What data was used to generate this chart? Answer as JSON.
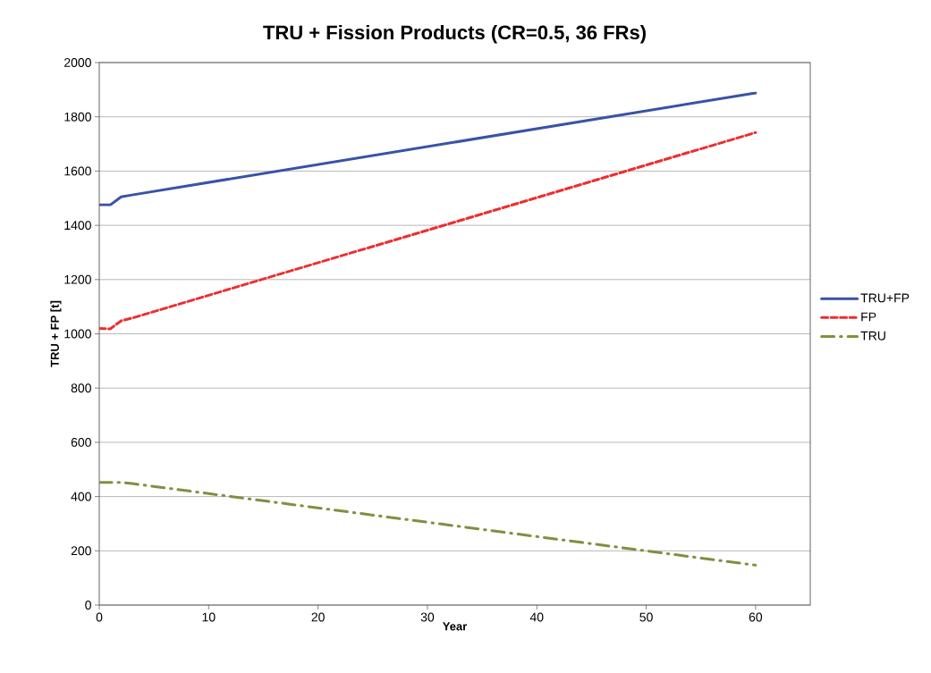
{
  "chart_data": {
    "type": "line",
    "title": "TRU + Fission Products (CR=0.5, 36 FRs)",
    "xlabel": "Year",
    "ylabel": "TRU + FP [t]",
    "x": [
      0,
      1,
      2,
      3,
      60
    ],
    "series": [
      {
        "name": "TRU+FP",
        "color": "#3953a4",
        "line_style": "solid",
        "values": [
          1475,
          1475,
          1505,
          1512,
          1888
        ]
      },
      {
        "name": "FP",
        "color": "#ed2e2e",
        "line_style": "dashed",
        "values": [
          1020,
          1018,
          1048,
          1058,
          1742
        ]
      },
      {
        "name": "TRU",
        "color": "#7f9040",
        "line_style": "dashdot",
        "values": [
          452,
          452,
          452,
          448,
          147
        ]
      }
    ],
    "xlim": [
      0,
      65
    ],
    "xticks": [
      0,
      10,
      20,
      30,
      40,
      50,
      60
    ],
    "ylim": [
      0,
      2000
    ],
    "yticks": [
      0,
      200,
      400,
      600,
      800,
      1000,
      1200,
      1400,
      1600,
      1800,
      2000
    ],
    "grid": "y",
    "legend": "right",
    "marker": "none"
  }
}
